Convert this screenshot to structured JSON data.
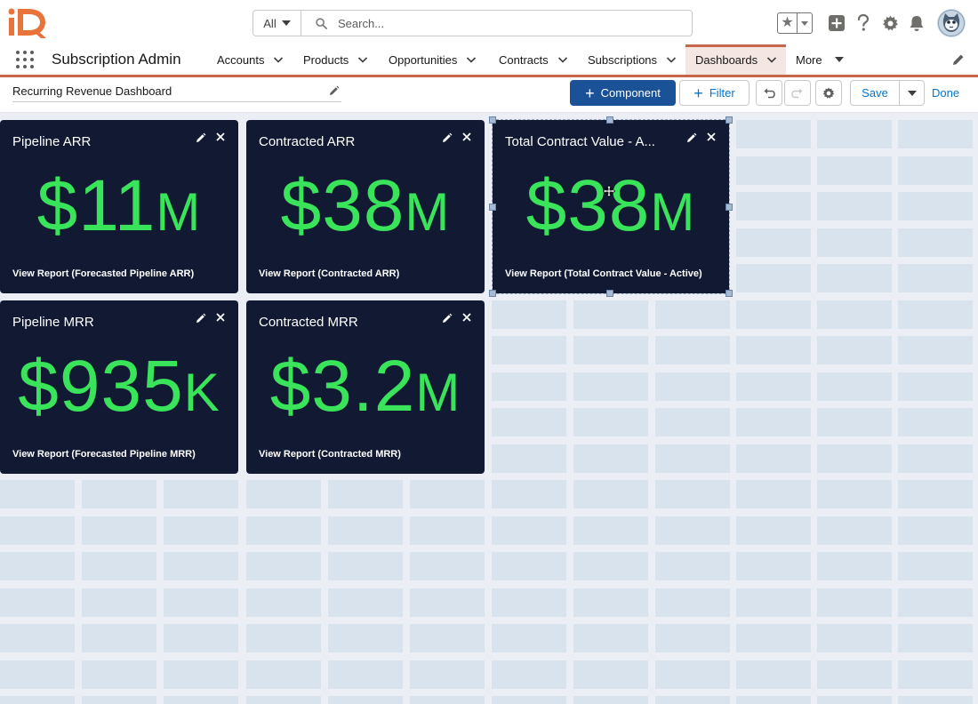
{
  "header": {
    "search": {
      "scope": "All",
      "placeholder": "Search..."
    },
    "icons": [
      "favorites-star-icon",
      "add-icon",
      "help-icon",
      "setup-gear-icon",
      "notifications-bell-icon",
      "user-avatar"
    ]
  },
  "nav": {
    "app_name": "Subscription Admin",
    "tabs": [
      {
        "label": "Accounts"
      },
      {
        "label": "Products"
      },
      {
        "label": "Opportunities"
      },
      {
        "label": "Contracts"
      },
      {
        "label": "Subscriptions"
      },
      {
        "label": "Dashboards",
        "active": true
      },
      {
        "label": "More"
      }
    ]
  },
  "toolbar": {
    "dashboard_name": "Recurring Revenue Dashboard",
    "add_component": "Component",
    "filter": "Filter",
    "save": "Save",
    "done": "Done"
  },
  "colors": {
    "tile_background": "#121a33",
    "metric_green": "#39e35a",
    "brand_button": "#1b5297",
    "nav_accent": "#c7674a"
  },
  "tiles": [
    {
      "title": "Pipeline ARR",
      "value": "$11",
      "suffix": "M",
      "link": "View Report (Forecasted Pipeline ARR)"
    },
    {
      "title": "Contracted ARR",
      "value": "$38",
      "suffix": "M",
      "link": "View Report (Contracted ARR)"
    },
    {
      "title": "Total Contract Value - A...",
      "value": "$38",
      "suffix": "M",
      "link": "View Report (Total Contract Value - Active)",
      "selected": true
    },
    {
      "title": "Pipeline MRR",
      "value": "$935",
      "suffix": "K",
      "link": "View Report (Forecasted Pipeline MRR)"
    },
    {
      "title": "Contracted MRR",
      "value": "$3.2",
      "suffix": "M",
      "link": "View Report (Contracted MRR)"
    }
  ]
}
